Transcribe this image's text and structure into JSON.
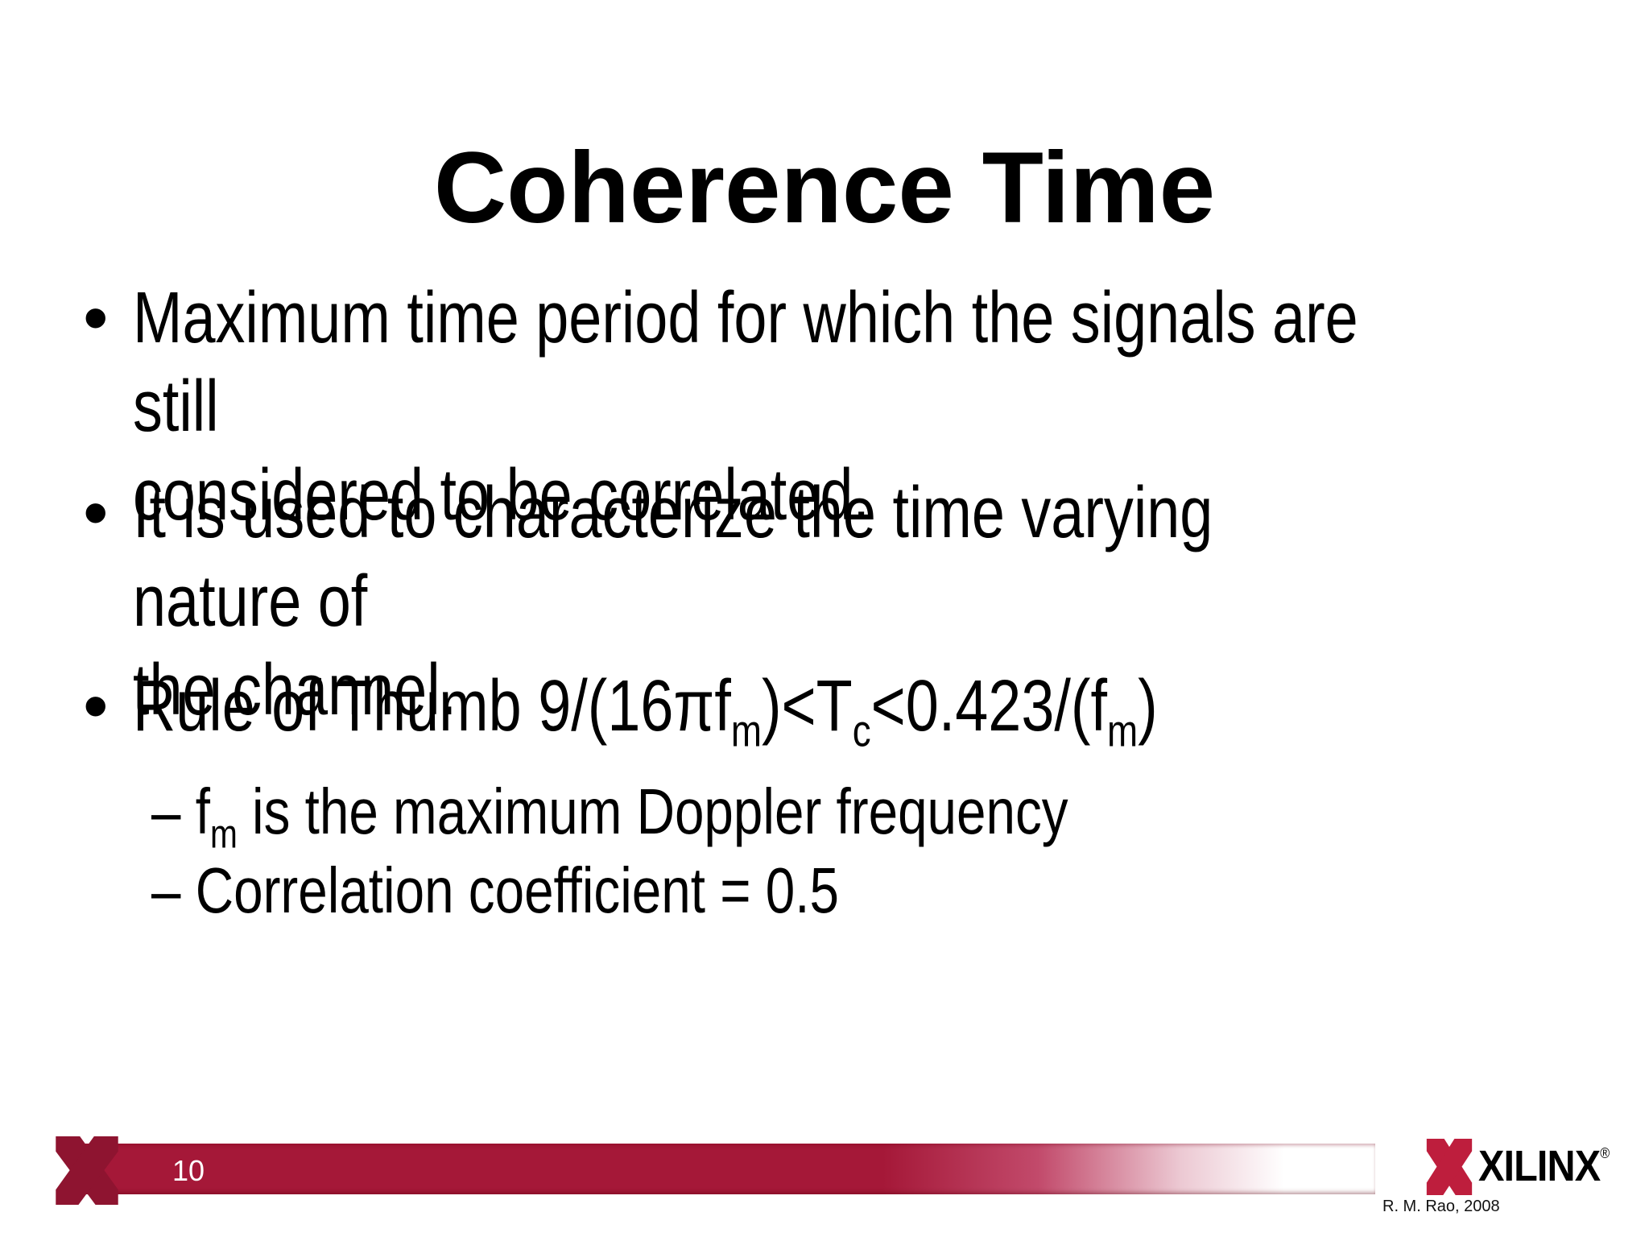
{
  "title": "Coherence Time",
  "bullets": {
    "b1": {
      "marker": "•",
      "text": "Maximum time period for which the signals are still\nconsidered to be correlated."
    },
    "b2": {
      "marker": "•",
      "text": "It is used to characterize the time varying nature of\nthe channel."
    },
    "b3": {
      "marker": "•",
      "segments": [
        {
          "t": "Rule of Thumb 9/(16πf"
        },
        {
          "t": "m",
          "sub": true
        },
        {
          "t": ")<T"
        },
        {
          "t": "c",
          "sub": true
        },
        {
          "t": "<0.423/(f"
        },
        {
          "t": "m",
          "sub": true
        },
        {
          "t": ")"
        }
      ]
    },
    "sub1": {
      "segments": [
        {
          "t": "– f"
        },
        {
          "t": "m",
          "sub": true
        },
        {
          "t": " is the maximum Doppler frequency"
        }
      ]
    },
    "sub2": {
      "text": "– Correlation coefficient = 0.5"
    }
  },
  "footer": {
    "page_number": "10",
    "credit": "R. M. Rao, 2008",
    "logo_text": "XILINX",
    "logo_registered": "®"
  },
  "icons": {
    "bar_x": "xilinx-x-mark",
    "logo_x": "xilinx-x-mark"
  },
  "colors": {
    "bar-red": "#a51838",
    "bar-x-red": "#8e1430",
    "logo-red": "#be1e3d",
    "page-number-white": "#ffffff",
    "text-black": "#000000"
  }
}
